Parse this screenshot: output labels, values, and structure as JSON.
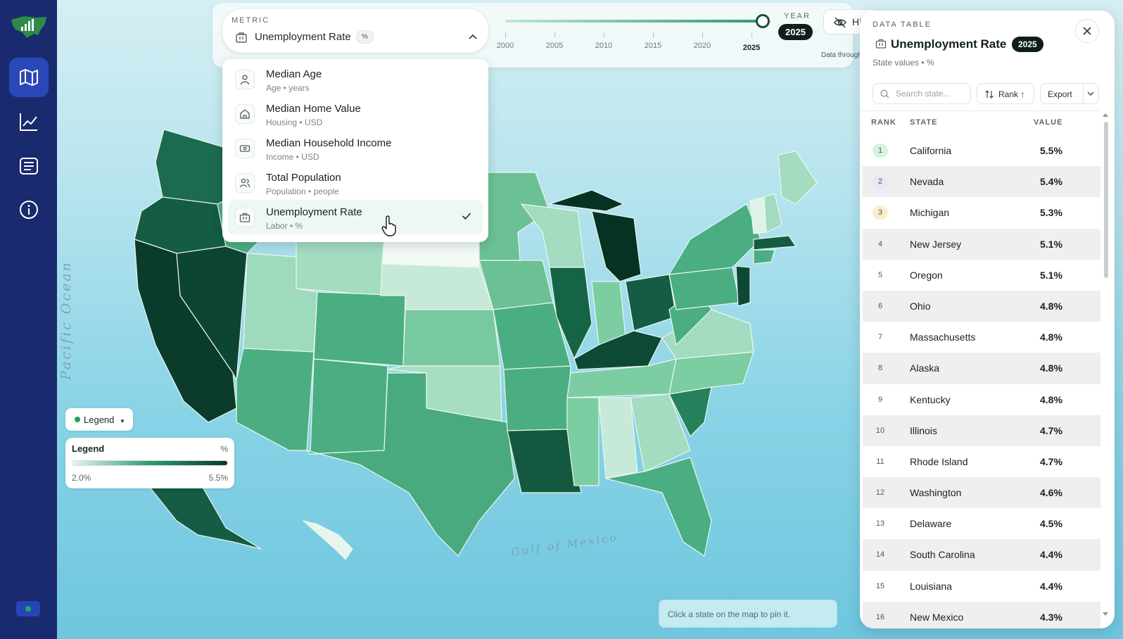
{
  "sidebar": {
    "nav": [
      {
        "icon": "map-icon",
        "active": true
      },
      {
        "icon": "chart-line-icon",
        "active": false
      },
      {
        "icon": "list-icon",
        "active": false
      },
      {
        "icon": "info-icon",
        "active": false
      }
    ]
  },
  "metric": {
    "caption": "METRIC",
    "selected": "Unemployment Rate",
    "unit": "%"
  },
  "dropdown": {
    "items": [
      {
        "title": "Median Age",
        "subtitle": "Age • years",
        "icon": "person-icon",
        "selected": false
      },
      {
        "title": "Median Home Value",
        "subtitle": "Housing • USD",
        "icon": "home-icon",
        "selected": false
      },
      {
        "title": "Median Household Income",
        "subtitle": "Income • USD",
        "icon": "banknote-icon",
        "selected": false
      },
      {
        "title": "Total Population",
        "subtitle": "Population • people",
        "icon": "people-icon",
        "selected": false
      },
      {
        "title": "Unemployment Rate",
        "subtitle": "Labor • %",
        "icon": "briefcase-icon",
        "selected": true
      }
    ]
  },
  "year": {
    "caption": "YEAR",
    "value": "2025",
    "ticks": [
      "2000",
      "2005",
      "2010",
      "2015",
      "2020",
      "2025"
    ],
    "min": 2000,
    "max": 2025,
    "current": 2025,
    "data_through": "Data through"
  },
  "hide_button": {
    "label": "Hi"
  },
  "map": {
    "pacific_label": "Pacific Ocean",
    "gulf_label": "Gulf of Mexico",
    "pin_hint": "Click a state on the map to pin it."
  },
  "legend": {
    "toggle_label": "Legend",
    "title": "Legend",
    "unit": "%",
    "min": "2.0%",
    "max": "5.5%"
  },
  "panel": {
    "caption": "DATA TABLE",
    "title": "Unemployment Rate",
    "year": "2025",
    "subtitle": "State values • %",
    "search_placeholder": "Search state...",
    "rank_label": "Rank ↑",
    "export_label": "Export",
    "columns": {
      "rank": "RANK",
      "state": "STATE",
      "value": "VALUE"
    },
    "rows": [
      {
        "rank": "1",
        "state": "California",
        "value": "5.5%",
        "medal": "#d8f2e2"
      },
      {
        "rank": "2",
        "state": "Nevada",
        "value": "5.4%",
        "medal": "#e6e9f2"
      },
      {
        "rank": "3",
        "state": "Michigan",
        "value": "5.3%",
        "medal": "#fbeec9"
      },
      {
        "rank": "4",
        "state": "New Jersey",
        "value": "5.1%",
        "medal": ""
      },
      {
        "rank": "5",
        "state": "Oregon",
        "value": "5.1%",
        "medal": ""
      },
      {
        "rank": "6",
        "state": "Ohio",
        "value": "4.8%",
        "medal": ""
      },
      {
        "rank": "7",
        "state": "Massachusetts",
        "value": "4.8%",
        "medal": ""
      },
      {
        "rank": "8",
        "state": "Alaska",
        "value": "4.8%",
        "medal": ""
      },
      {
        "rank": "9",
        "state": "Kentucky",
        "value": "4.8%",
        "medal": ""
      },
      {
        "rank": "10",
        "state": "Illinois",
        "value": "4.7%",
        "medal": ""
      },
      {
        "rank": "11",
        "state": "Rhode Island",
        "value": "4.7%",
        "medal": ""
      },
      {
        "rank": "12",
        "state": "Washington",
        "value": "4.6%",
        "medal": ""
      },
      {
        "rank": "13",
        "state": "Delaware",
        "value": "4.5%",
        "medal": ""
      },
      {
        "rank": "14",
        "state": "South Carolina",
        "value": "4.4%",
        "medal": ""
      },
      {
        "rank": "15",
        "state": "Louisiana",
        "value": "4.4%",
        "medal": ""
      },
      {
        "rank": "16",
        "state": "New Mexico",
        "value": "4.3%",
        "medal": ""
      }
    ]
  },
  "colors": {
    "sidebar": "#1a2a6e",
    "active_nav": "#2a48b8",
    "accent_dark": "#0c3b2b",
    "accent": "#2f9a6b",
    "accent_light": "#e6f6ef"
  }
}
